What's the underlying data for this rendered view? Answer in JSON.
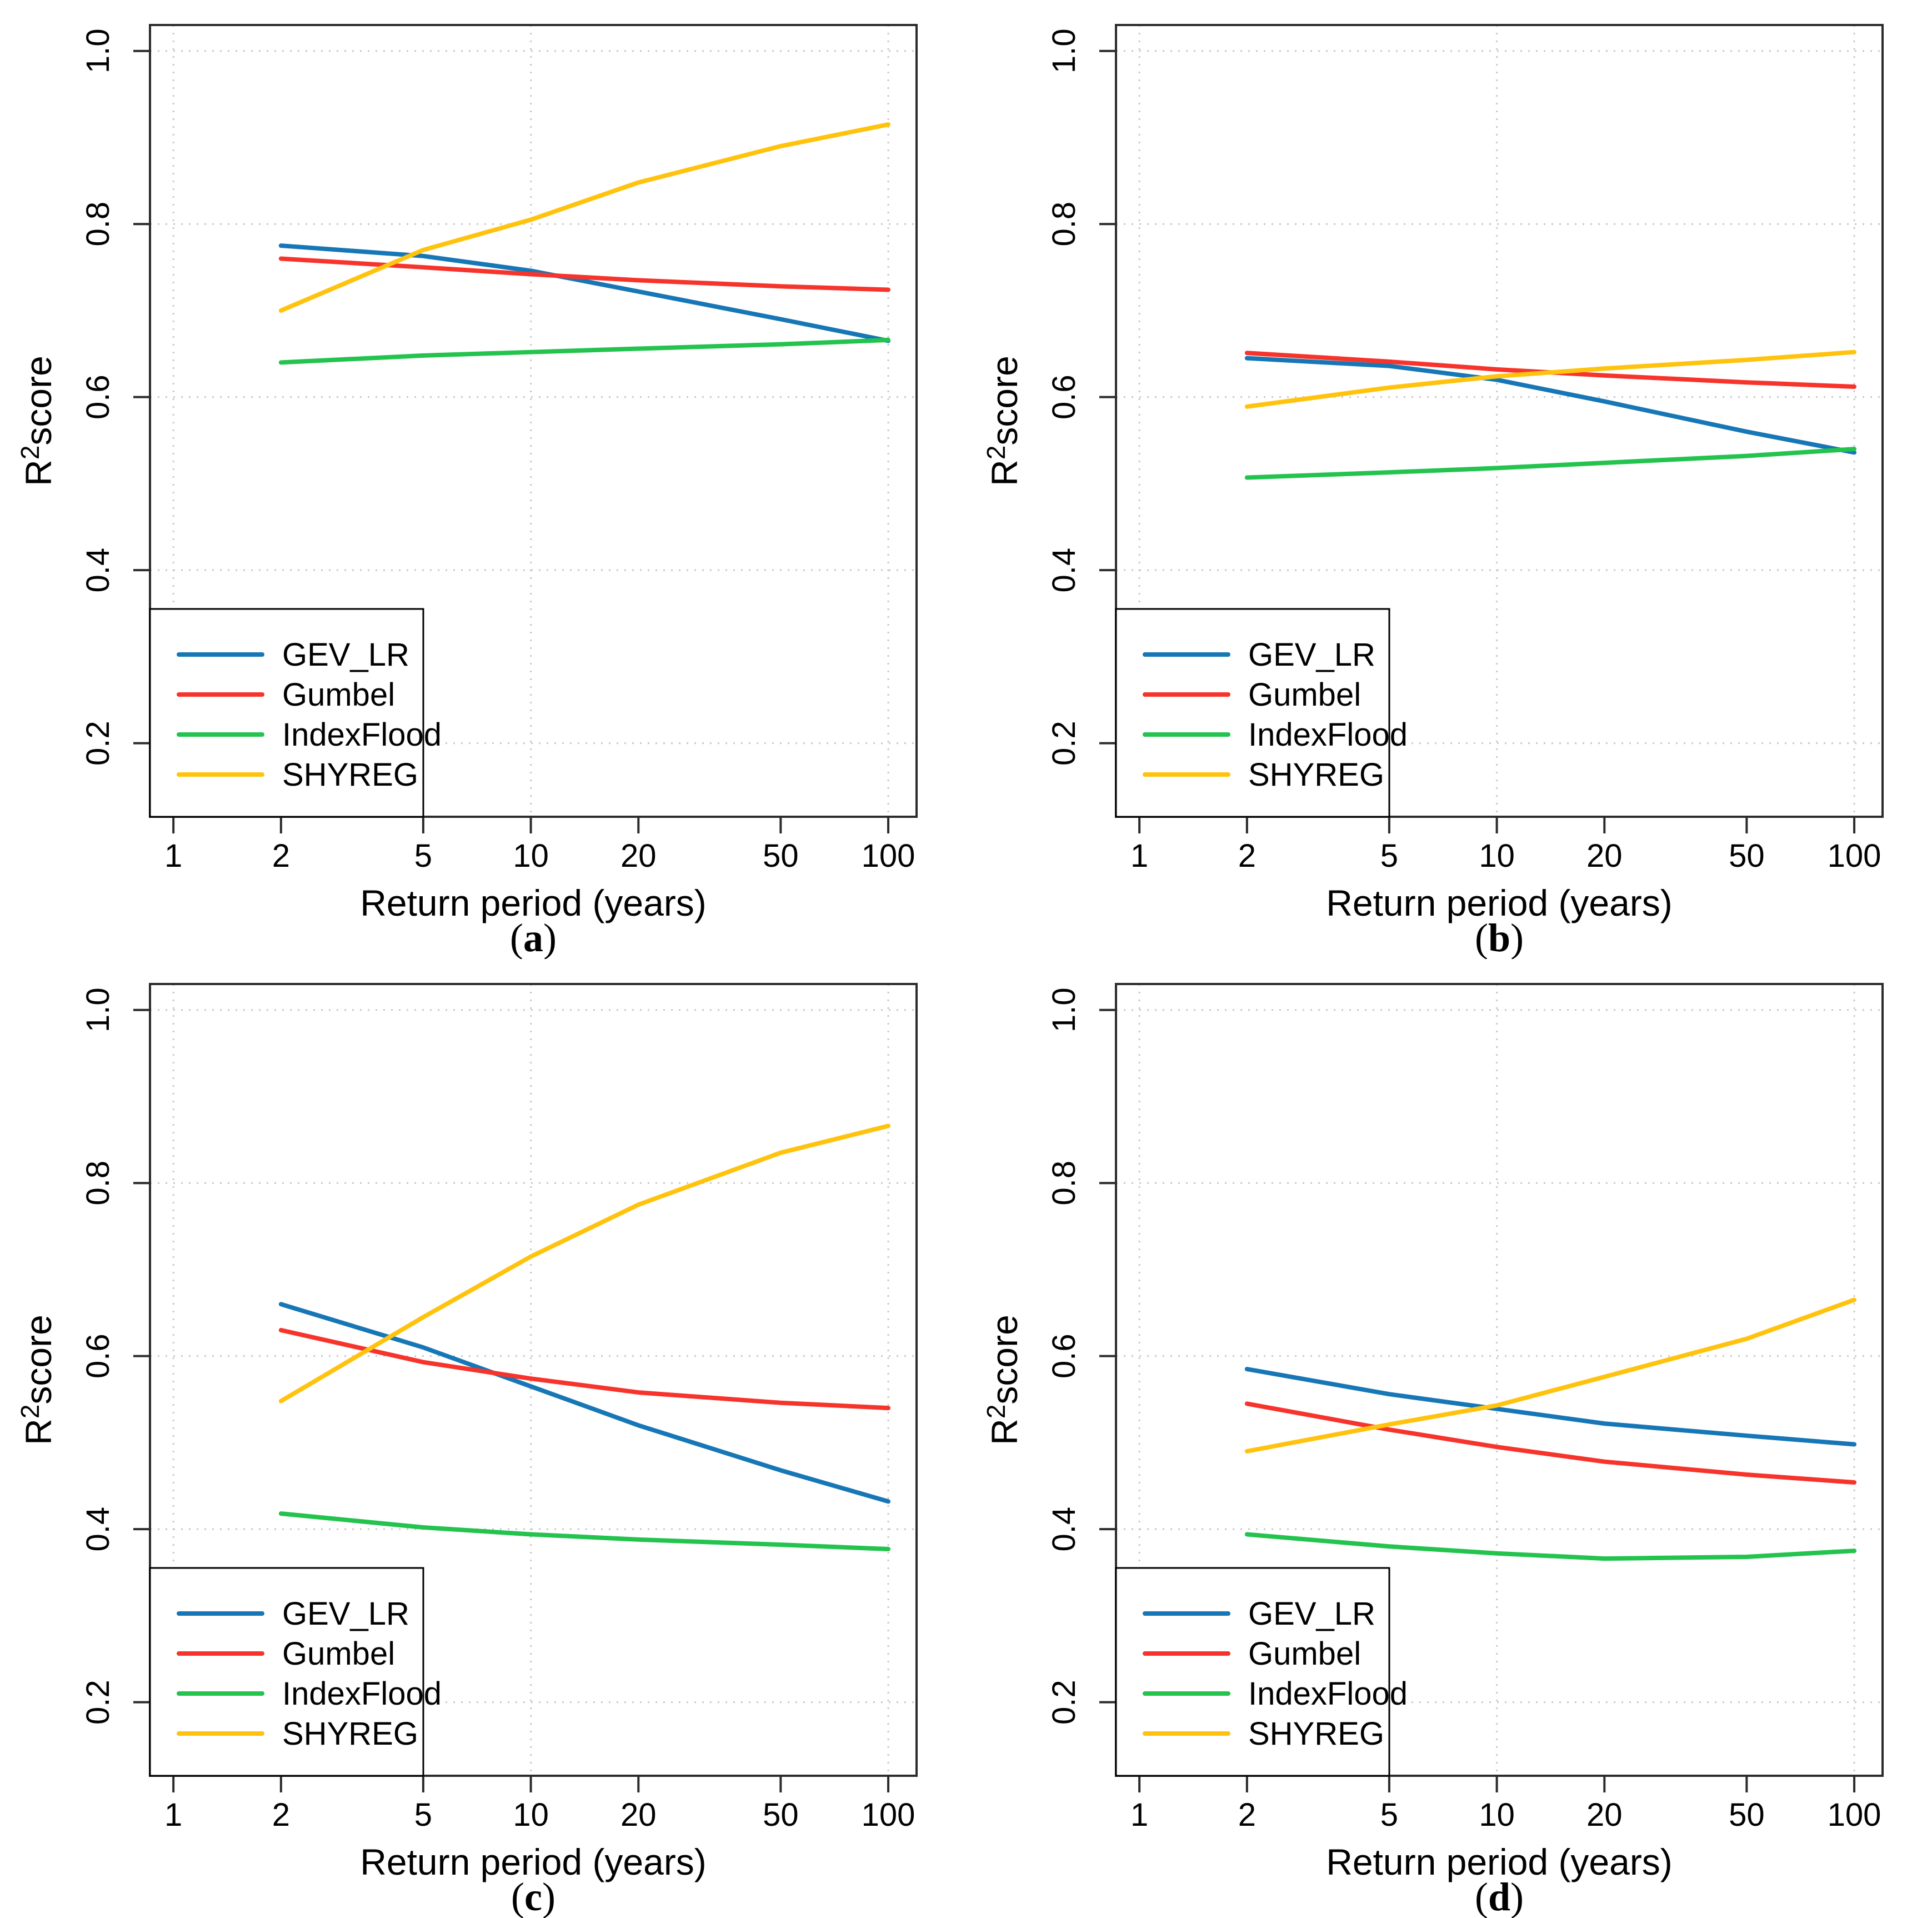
{
  "page": {
    "background": "#ffffff"
  },
  "colors": {
    "GEV_LR": "#1777B6",
    "Gumbel": "#F7342B",
    "IndexFlood": "#23C34E",
    "SHYREG": "#FFC30E",
    "grid": "#C9C9C9",
    "frame": "#2B2B2B",
    "text": "#000000",
    "legend_border": "#000000",
    "legend_fill": "#FFFFFF"
  },
  "axes": {
    "xlabel": "Return period (years)",
    "ylabel": {
      "base": "R",
      "sup": "2",
      "rest": "score",
      "display": "R2score"
    },
    "x_ticks": [
      1,
      2,
      5,
      10,
      20,
      50,
      100
    ],
    "y_ticks": [
      0.2,
      0.4,
      0.6,
      0.8,
      1.0
    ],
    "x_gridlines": [
      1,
      10,
      100
    ],
    "y_gridlines": [
      0.2,
      0.4,
      0.6,
      0.8,
      1.0
    ],
    "x_scale": "log",
    "xlim": [
      1,
      100
    ],
    "ylim": [
      0.2,
      1.0
    ],
    "grid_style": "dotted"
  },
  "legend": {
    "position": "bottom-left",
    "entries": [
      "GEV_LR",
      "Gumbel",
      "IndexFlood",
      "SHYREG"
    ]
  },
  "chart_data": [
    {
      "panel": "a",
      "caption_letter": "a",
      "type": "line",
      "x": [
        2,
        5,
        10,
        20,
        50,
        100
      ],
      "series": [
        {
          "name": "GEV_LR",
          "values": [
            0.775,
            0.763,
            0.746,
            0.722,
            0.69,
            0.665
          ]
        },
        {
          "name": "Gumbel",
          "values": [
            0.76,
            0.75,
            0.742,
            0.735,
            0.728,
            0.724
          ]
        },
        {
          "name": "IndexFlood",
          "values": [
            0.64,
            0.648,
            0.652,
            0.656,
            0.661,
            0.666
          ]
        },
        {
          "name": "SHYREG",
          "values": [
            0.7,
            0.77,
            0.805,
            0.848,
            0.89,
            0.915
          ]
        }
      ]
    },
    {
      "panel": "b",
      "caption_letter": "b",
      "type": "line",
      "x": [
        2,
        5,
        10,
        20,
        50,
        100
      ],
      "series": [
        {
          "name": "GEV_LR",
          "values": [
            0.645,
            0.636,
            0.62,
            0.595,
            0.56,
            0.536
          ]
        },
        {
          "name": "Gumbel",
          "values": [
            0.651,
            0.641,
            0.632,
            0.625,
            0.617,
            0.612
          ]
        },
        {
          "name": "IndexFlood",
          "values": [
            0.507,
            0.513,
            0.518,
            0.524,
            0.532,
            0.54
          ]
        },
        {
          "name": "SHYREG",
          "values": [
            0.589,
            0.611,
            0.624,
            0.633,
            0.643,
            0.652
          ]
        }
      ]
    },
    {
      "panel": "c",
      "caption_letter": "c",
      "type": "line",
      "x": [
        2,
        5,
        10,
        20,
        50,
        100
      ],
      "series": [
        {
          "name": "GEV_LR",
          "values": [
            0.66,
            0.61,
            0.565,
            0.52,
            0.468,
            0.432
          ]
        },
        {
          "name": "Gumbel",
          "values": [
            0.63,
            0.593,
            0.574,
            0.558,
            0.546,
            0.54
          ]
        },
        {
          "name": "IndexFlood",
          "values": [
            0.418,
            0.402,
            0.394,
            0.388,
            0.382,
            0.377
          ]
        },
        {
          "name": "SHYREG",
          "values": [
            0.548,
            0.645,
            0.715,
            0.775,
            0.835,
            0.866
          ]
        }
      ]
    },
    {
      "panel": "d",
      "caption_letter": "d",
      "type": "line",
      "x": [
        2,
        5,
        10,
        20,
        50,
        100
      ],
      "series": [
        {
          "name": "GEV_LR",
          "values": [
            0.585,
            0.556,
            0.539,
            0.522,
            0.508,
            0.498
          ]
        },
        {
          "name": "Gumbel",
          "values": [
            0.545,
            0.515,
            0.495,
            0.478,
            0.463,
            0.454
          ]
        },
        {
          "name": "IndexFlood",
          "values": [
            0.394,
            0.38,
            0.372,
            0.366,
            0.368,
            0.375
          ]
        },
        {
          "name": "SHYREG",
          "values": [
            0.49,
            0.521,
            0.543,
            0.576,
            0.62,
            0.665
          ]
        }
      ]
    }
  ]
}
